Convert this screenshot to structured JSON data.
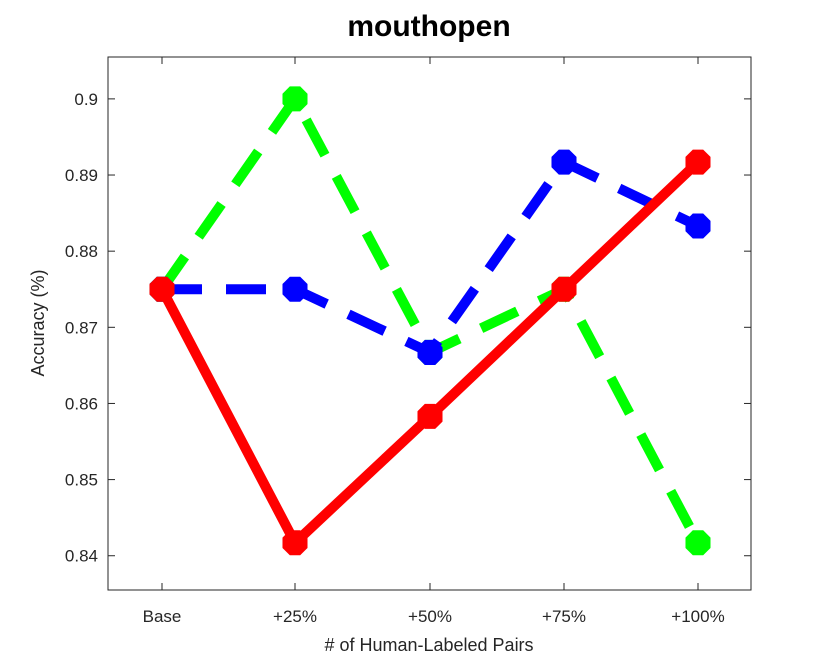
{
  "chart_data": {
    "type": "line",
    "title": "mouthopen",
    "xlabel": "# of Human-Labeled Pairs",
    "ylabel": "Accuracy (%)",
    "categories": [
      "Base",
      "+25%",
      "+50%",
      "+75%",
      "+100%"
    ],
    "ylim": [
      0.8355,
      0.9055
    ],
    "yticks": [
      0.84,
      0.85,
      0.86,
      0.87,
      0.88,
      0.89,
      0.9
    ],
    "ytick_labels": [
      "0.84",
      "0.85",
      "0.86",
      "0.87",
      "0.88",
      "0.89",
      "0.9"
    ],
    "grid": false,
    "series": [
      {
        "color": "#00ff00",
        "style": "dashed",
        "values": [
          0.875,
          0.9,
          0.8667,
          0.875,
          0.8417
        ]
      },
      {
        "color": "#0000ff",
        "style": "dashed",
        "values": [
          0.875,
          0.875,
          0.8667,
          0.8917,
          0.8833
        ]
      },
      {
        "color": "#ff0000",
        "style": "solid",
        "values": [
          0.875,
          0.8417,
          0.8583,
          0.875,
          0.8917
        ]
      }
    ]
  }
}
